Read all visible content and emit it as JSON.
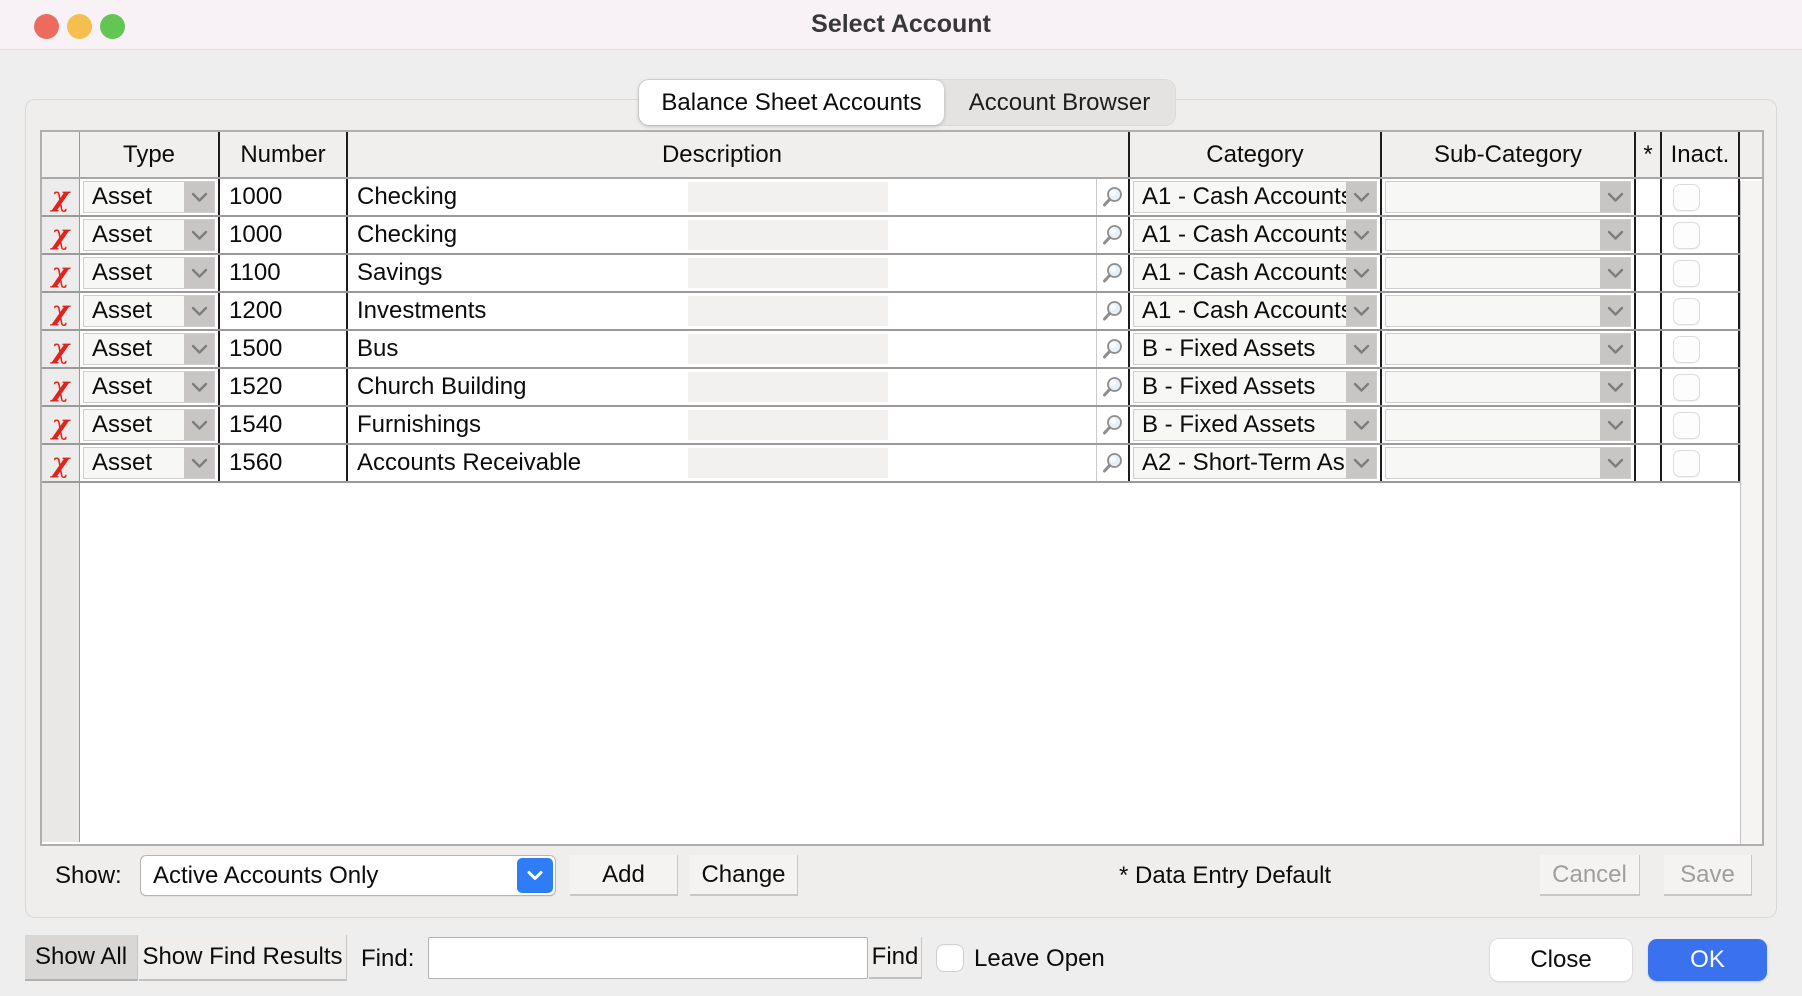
{
  "window": {
    "title": "Select Account"
  },
  "tabs": {
    "balance_sheet": {
      "label": "Balance Sheet Accounts",
      "selected": true
    },
    "account_browser": {
      "label": "Account Browser",
      "selected": false
    }
  },
  "table": {
    "headers": {
      "type": "Type",
      "number": "Number",
      "description": "Description",
      "category": "Category",
      "sub_category": "Sub-Category",
      "star": "*",
      "inactive": "Inact."
    },
    "rows": [
      {
        "type": "Asset",
        "number": "1000",
        "description": "Checking",
        "category": "A1 - Cash Accounts",
        "sub_category": "",
        "default": false,
        "inactive": false
      },
      {
        "type": "Asset",
        "number": "1000",
        "description": "Checking",
        "category": "A1 - Cash Accounts",
        "sub_category": "",
        "default": false,
        "inactive": false
      },
      {
        "type": "Asset",
        "number": "1100",
        "description": "Savings",
        "category": "A1 - Cash Accounts",
        "sub_category": "",
        "default": false,
        "inactive": false
      },
      {
        "type": "Asset",
        "number": "1200",
        "description": "Investments",
        "category": "A1 - Cash Accounts",
        "sub_category": "",
        "default": false,
        "inactive": false
      },
      {
        "type": "Asset",
        "number": "1500",
        "description": "Bus",
        "category": "B - Fixed Assets",
        "sub_category": "",
        "default": false,
        "inactive": false
      },
      {
        "type": "Asset",
        "number": "1520",
        "description": "Church Building",
        "category": "B - Fixed Assets",
        "sub_category": "",
        "default": false,
        "inactive": false
      },
      {
        "type": "Asset",
        "number": "1540",
        "description": "Furnishings",
        "category": "B - Fixed Assets",
        "sub_category": "",
        "default": false,
        "inactive": false
      },
      {
        "type": "Asset",
        "number": "1560",
        "description": "Accounts Receivable",
        "category": "A2 - Short-Term As",
        "sub_category": "",
        "default": false,
        "inactive": false
      }
    ]
  },
  "controls": {
    "show_label": "Show:",
    "show_value": "Active Accounts Only",
    "add_label": "Add",
    "change_label": "Change",
    "data_entry_default_note": "* Data Entry Default",
    "cancel_label": "Cancel",
    "save_label": "Save"
  },
  "footer": {
    "show_all_label": "Show All",
    "show_find_results_label": "Show Find Results",
    "find_label": "Find:",
    "find_value": "",
    "find_button_label": "Find",
    "leave_open_label": "Leave Open",
    "close_label": "Close",
    "ok_label": "OK"
  },
  "icons": {
    "delete_icon_glyph": "χ",
    "traffic_lights": [
      "close",
      "minimize",
      "zoom"
    ]
  },
  "colors": {
    "accent_blue": "#2e7df7",
    "ok_button_blue": "#3a71ee",
    "delete_red": "#e2231c",
    "title_bar": "#f8f2f7",
    "dialog_bg": "#efeeee",
    "traffic_red": "#ed6a5e",
    "traffic_yellow": "#f5bf4f",
    "traffic_green": "#62c554"
  }
}
